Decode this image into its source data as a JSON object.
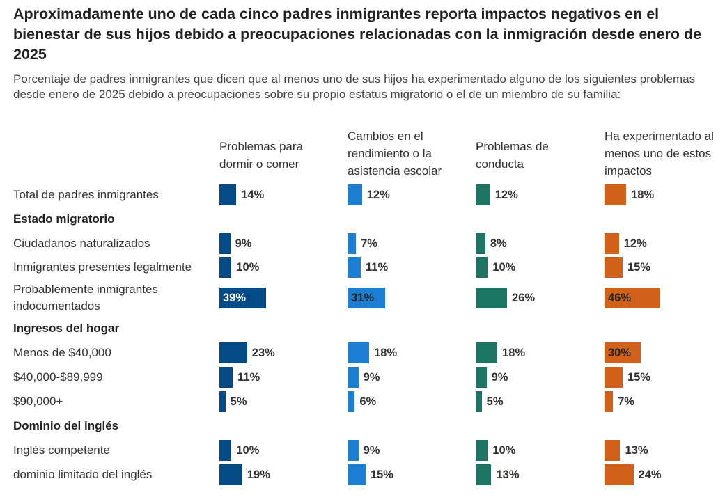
{
  "title": "Aproximadamente uno de cada cinco padres inmigrantes reporta impactos negativos en el bienestar de sus hijos debido a preocupaciones relacionadas con la inmigración desde enero de 2025",
  "subtitle": "Porcentaje de padres inmigrantes que dicen que al menos uno de sus hijos ha experimentado alguno de los siguientes problemas desde enero de 2025 debido a preocupaciones sobre su propio estatus migratorio o el de un miembro de su familia:",
  "chart_data": {
    "type": "bar",
    "columns": [
      {
        "name": "Problemas para dormir o comer",
        "color": "#034a87"
      },
      {
        "name": "Cambios en el rendimiento o la asistencia escolar",
        "color": "#1b80d4"
      },
      {
        "name": "Problemas de conducta",
        "color": "#1b7562"
      },
      {
        "name": "Ha experimentado al menos uno de estos impactos",
        "color": "#d0601a"
      }
    ],
    "rows": [
      {
        "label": "Total de padres inmigrantes",
        "values": [
          14,
          12,
          12,
          18
        ]
      },
      {
        "label": "Estado migratorio",
        "section": true
      },
      {
        "label": "Ciudadanos naturalizados",
        "values": [
          9,
          7,
          8,
          12
        ]
      },
      {
        "label": "Inmigrantes presentes legalmente",
        "values": [
          10,
          11,
          10,
          15
        ]
      },
      {
        "label": "Probablemente inmigrantes indocumentados",
        "values": [
          39,
          31,
          26,
          46
        ]
      },
      {
        "label": "Ingresos del hogar",
        "section": true
      },
      {
        "label": "Menos de $40,000",
        "values": [
          23,
          18,
          18,
          30
        ]
      },
      {
        "label": "$40,000-$89,999",
        "values": [
          11,
          9,
          9,
          15
        ]
      },
      {
        "label": "$90,000+",
        "values": [
          5,
          6,
          5,
          7
        ]
      },
      {
        "label": "Dominio del inglés",
        "section": true
      },
      {
        "label": "Inglés competente",
        "values": [
          10,
          9,
          10,
          13
        ]
      },
      {
        "label": "dominio limitado del inglés",
        "values": [
          19,
          15,
          13,
          24
        ]
      }
    ],
    "unit": "%"
  }
}
